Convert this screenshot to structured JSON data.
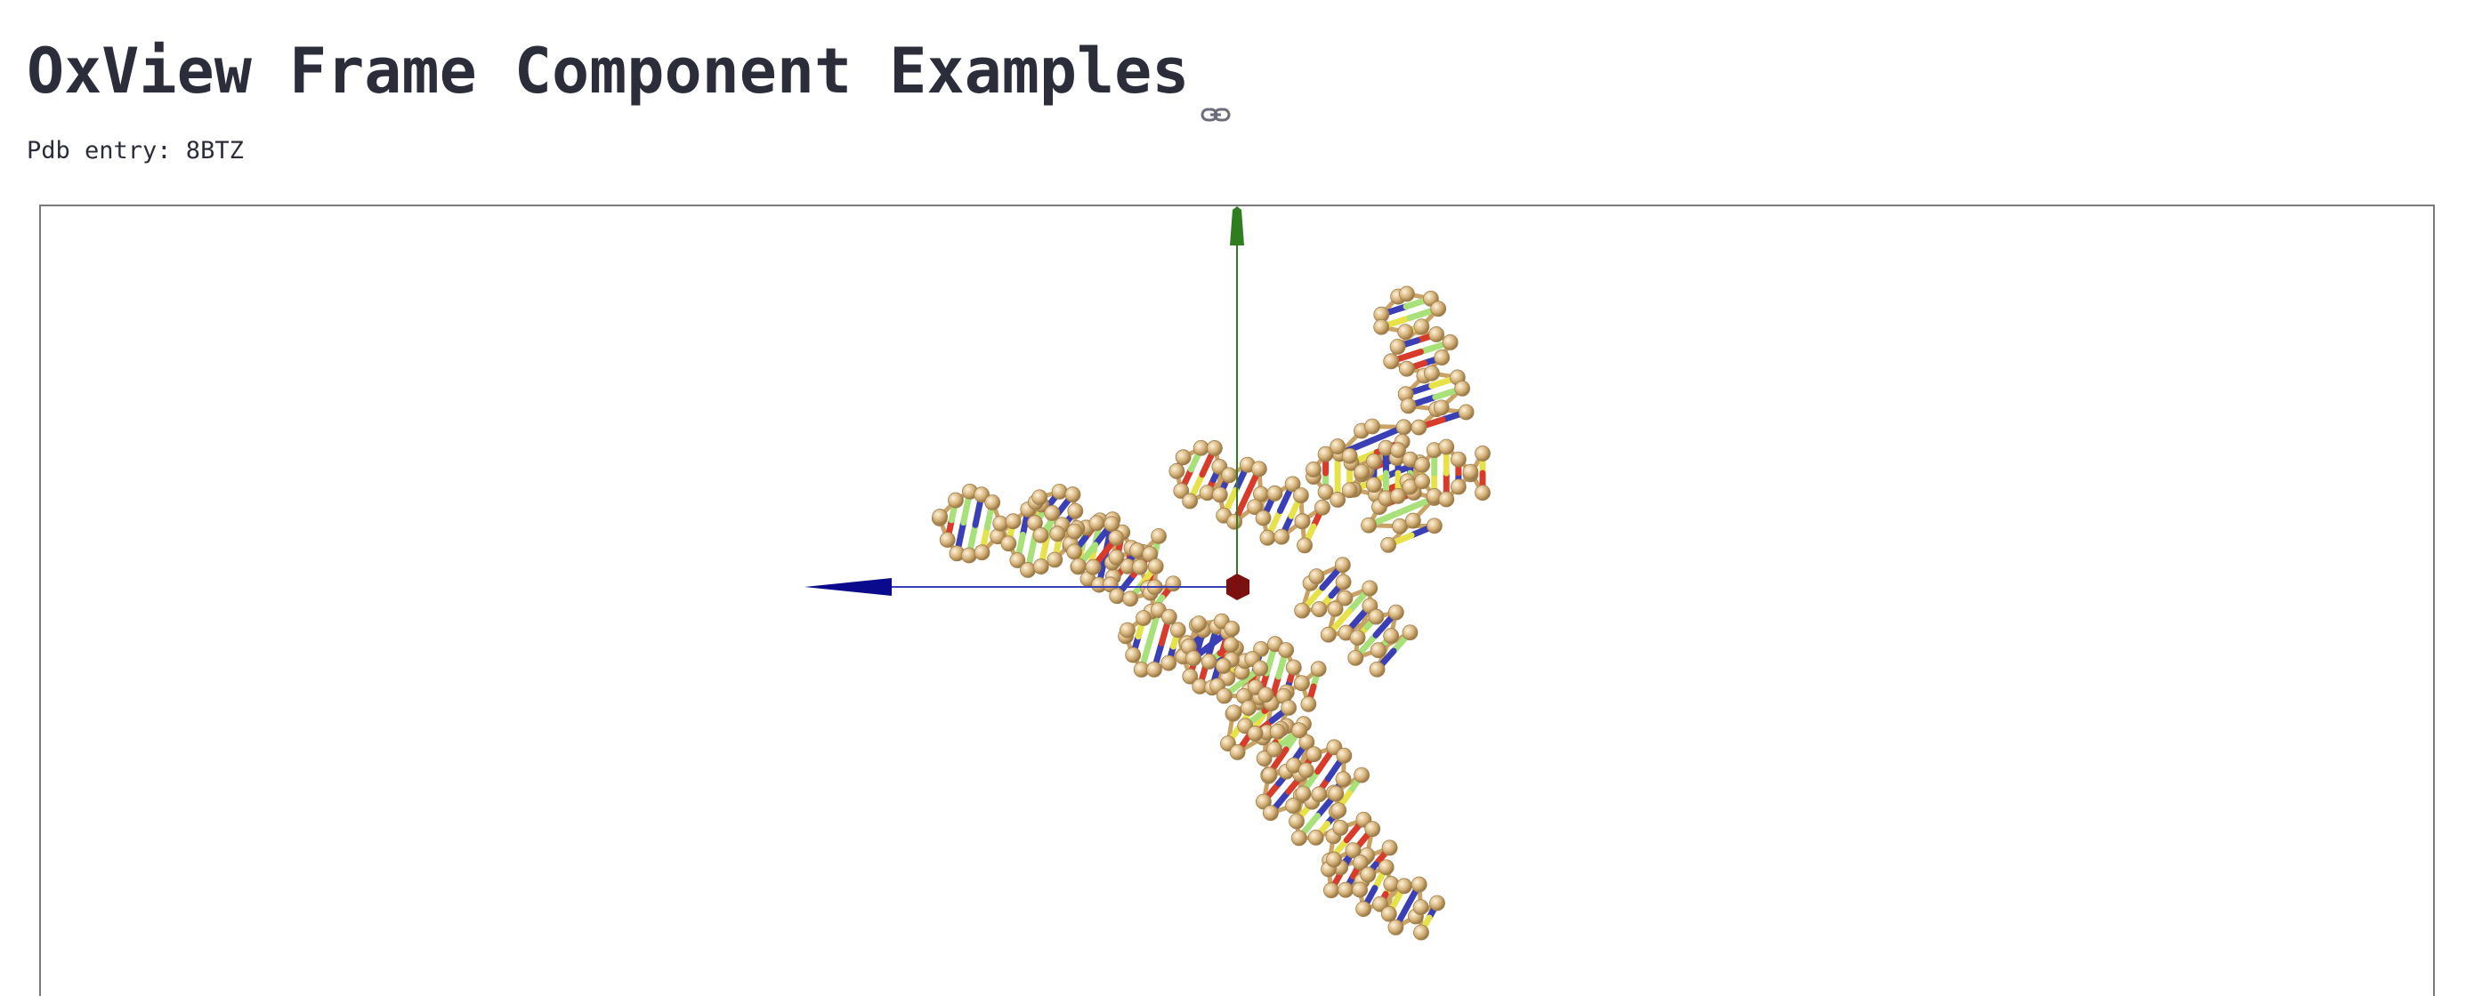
{
  "page": {
    "title": "OxView Frame Component Examples",
    "subtitle": "Pdb entry: 8BTZ"
  },
  "viewer": {
    "axes": {
      "x_color": "#0a0a8c",
      "y_color": "#2e7d1f",
      "origin_color": "#7a1010"
    },
    "nucleotide_colors": {
      "backbone": "#d6b37a",
      "base_a": "#d93b2b",
      "base_c": "#3a3fb5",
      "base_g": "#a8e07a",
      "base_t": "#e8e24a"
    },
    "icons": {
      "anchor": "link-icon"
    }
  }
}
